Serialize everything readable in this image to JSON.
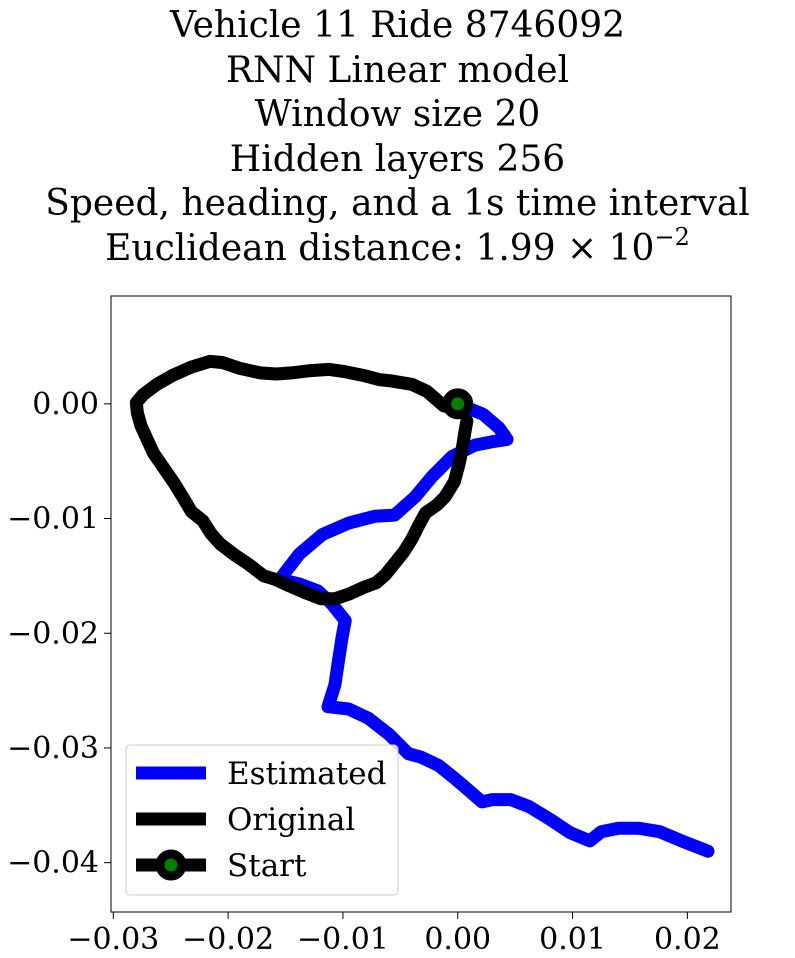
{
  "title": {
    "lines": [
      "Vehicle 11 Ride 8746092",
      "RNN Linear model",
      "Window size 20",
      "Hidden layers 256",
      "Speed, heading, and a 1s time interval"
    ],
    "distance_prefix": "Euclidean distance: ",
    "distance_mantissa": "1.99",
    "distance_times": " × 10",
    "distance_exponent": "−2"
  },
  "chart_data": {
    "type": "line",
    "xlim": [
      -0.0302,
      0.0238
    ],
    "ylim": [
      -0.0443,
      0.0094
    ],
    "xticks": [
      -0.03,
      -0.02,
      -0.01,
      0.0,
      0.01,
      0.02
    ],
    "xtick_labels": [
      "−0.03",
      "−0.02",
      "−0.01",
      "0.00",
      "0.01",
      "0.02"
    ],
    "yticks": [
      0.0,
      -0.01,
      -0.02,
      -0.03,
      -0.04
    ],
    "ytick_labels": [
      "0.00",
      "−0.01",
      "−0.02",
      "−0.03",
      "−0.04"
    ],
    "grid": false,
    "legend_position": "bottom-left",
    "series": [
      {
        "name": "Estimated",
        "color": "#0000ff",
        "points": [
          [
            0.0,
            0.0
          ],
          [
            0.0022,
            -0.0009
          ],
          [
            0.0036,
            -0.0021
          ],
          [
            0.0043,
            -0.0031
          ],
          [
            0.003,
            -0.0033
          ],
          [
            0.0015,
            -0.0036
          ],
          [
            -0.0005,
            -0.0046
          ],
          [
            -0.0022,
            -0.0063
          ],
          [
            -0.0037,
            -0.0081
          ],
          [
            -0.0055,
            -0.0097
          ],
          [
            -0.0072,
            -0.0098
          ],
          [
            -0.0095,
            -0.0104
          ],
          [
            -0.0118,
            -0.0114
          ],
          [
            -0.0138,
            -0.0131
          ],
          [
            -0.0155,
            -0.0153
          ],
          [
            -0.0138,
            -0.0157
          ],
          [
            -0.0122,
            -0.0163
          ],
          [
            -0.011,
            -0.0174
          ],
          [
            -0.0098,
            -0.0189
          ],
          [
            -0.0101,
            -0.0205
          ],
          [
            -0.0104,
            -0.0225
          ],
          [
            -0.0107,
            -0.0245
          ],
          [
            -0.0113,
            -0.0264
          ],
          [
            -0.0095,
            -0.0266
          ],
          [
            -0.0078,
            -0.0274
          ],
          [
            -0.006,
            -0.0288
          ],
          [
            -0.0043,
            -0.0305
          ],
          [
            -0.0032,
            -0.0308
          ],
          [
            -0.0017,
            -0.0315
          ],
          [
            -0.0002,
            -0.0327
          ],
          [
            0.0013,
            -0.034
          ],
          [
            0.0021,
            -0.0347
          ],
          [
            0.003,
            -0.0345
          ],
          [
            0.0046,
            -0.0345
          ],
          [
            0.0062,
            -0.0351
          ],
          [
            0.008,
            -0.0362
          ],
          [
            0.0098,
            -0.0374
          ],
          [
            0.0115,
            -0.0381
          ],
          [
            0.0125,
            -0.0373
          ],
          [
            0.014,
            -0.037
          ],
          [
            0.0158,
            -0.037
          ],
          [
            0.0176,
            -0.0373
          ],
          [
            0.0195,
            -0.0381
          ],
          [
            0.0218,
            -0.039
          ]
        ]
      },
      {
        "name": "Original",
        "color": "#000000",
        "points": [
          [
            0.0,
            0.0
          ],
          [
            -0.0012,
            -0.0002
          ],
          [
            -0.0027,
            0.0011
          ],
          [
            -0.004,
            0.0017
          ],
          [
            -0.0058,
            0.002
          ],
          [
            -0.0068,
            0.0021
          ],
          [
            -0.0083,
            0.0025
          ],
          [
            -0.0098,
            0.0028
          ],
          [
            -0.0112,
            0.003
          ],
          [
            -0.0128,
            0.0029
          ],
          [
            -0.0145,
            0.0027
          ],
          [
            -0.0158,
            0.0026
          ],
          [
            -0.0172,
            0.0027
          ],
          [
            -0.019,
            0.0031
          ],
          [
            -0.0205,
            0.0036
          ],
          [
            -0.0216,
            0.0037
          ],
          [
            -0.0232,
            0.0032
          ],
          [
            -0.0248,
            0.0025
          ],
          [
            -0.0262,
            0.0017
          ],
          [
            -0.0274,
            0.0008
          ],
          [
            -0.028,
            0.0001
          ],
          [
            -0.0279,
            -0.0008
          ],
          [
            -0.0276,
            -0.0019
          ],
          [
            -0.0271,
            -0.003
          ],
          [
            -0.0265,
            -0.0043
          ],
          [
            -0.0256,
            -0.0056
          ],
          [
            -0.0247,
            -0.0069
          ],
          [
            -0.0239,
            -0.0082
          ],
          [
            -0.0232,
            -0.0094
          ],
          [
            -0.0222,
            -0.0102
          ],
          [
            -0.0215,
            -0.0113
          ],
          [
            -0.0207,
            -0.0122
          ],
          [
            -0.0194,
            -0.0132
          ],
          [
            -0.0182,
            -0.014
          ],
          [
            -0.0169,
            -0.015
          ],
          [
            -0.0159,
            -0.0153
          ],
          [
            -0.0146,
            -0.0159
          ],
          [
            -0.0132,
            -0.0165
          ],
          [
            -0.0119,
            -0.017
          ],
          [
            -0.0107,
            -0.017
          ],
          [
            -0.0095,
            -0.0166
          ],
          [
            -0.0082,
            -0.016
          ],
          [
            -0.0071,
            -0.0156
          ],
          [
            -0.0063,
            -0.0149
          ],
          [
            -0.0055,
            -0.0139
          ],
          [
            -0.0047,
            -0.0129
          ],
          [
            -0.004,
            -0.0118
          ],
          [
            -0.0034,
            -0.0106
          ],
          [
            -0.0028,
            -0.0095
          ],
          [
            -0.0018,
            -0.0088
          ],
          [
            -0.0011,
            -0.0081
          ],
          [
            -0.0003,
            -0.0068
          ],
          [
            0.0001,
            -0.0053
          ],
          [
            0.0004,
            -0.0039
          ],
          [
            0.0006,
            -0.0026
          ],
          [
            0.0008,
            -0.0015
          ]
        ]
      }
    ],
    "start": {
      "name": "Start",
      "x": 0.0,
      "y": 0.0,
      "marker_color": "#008000",
      "edge_color": "#000000"
    }
  }
}
